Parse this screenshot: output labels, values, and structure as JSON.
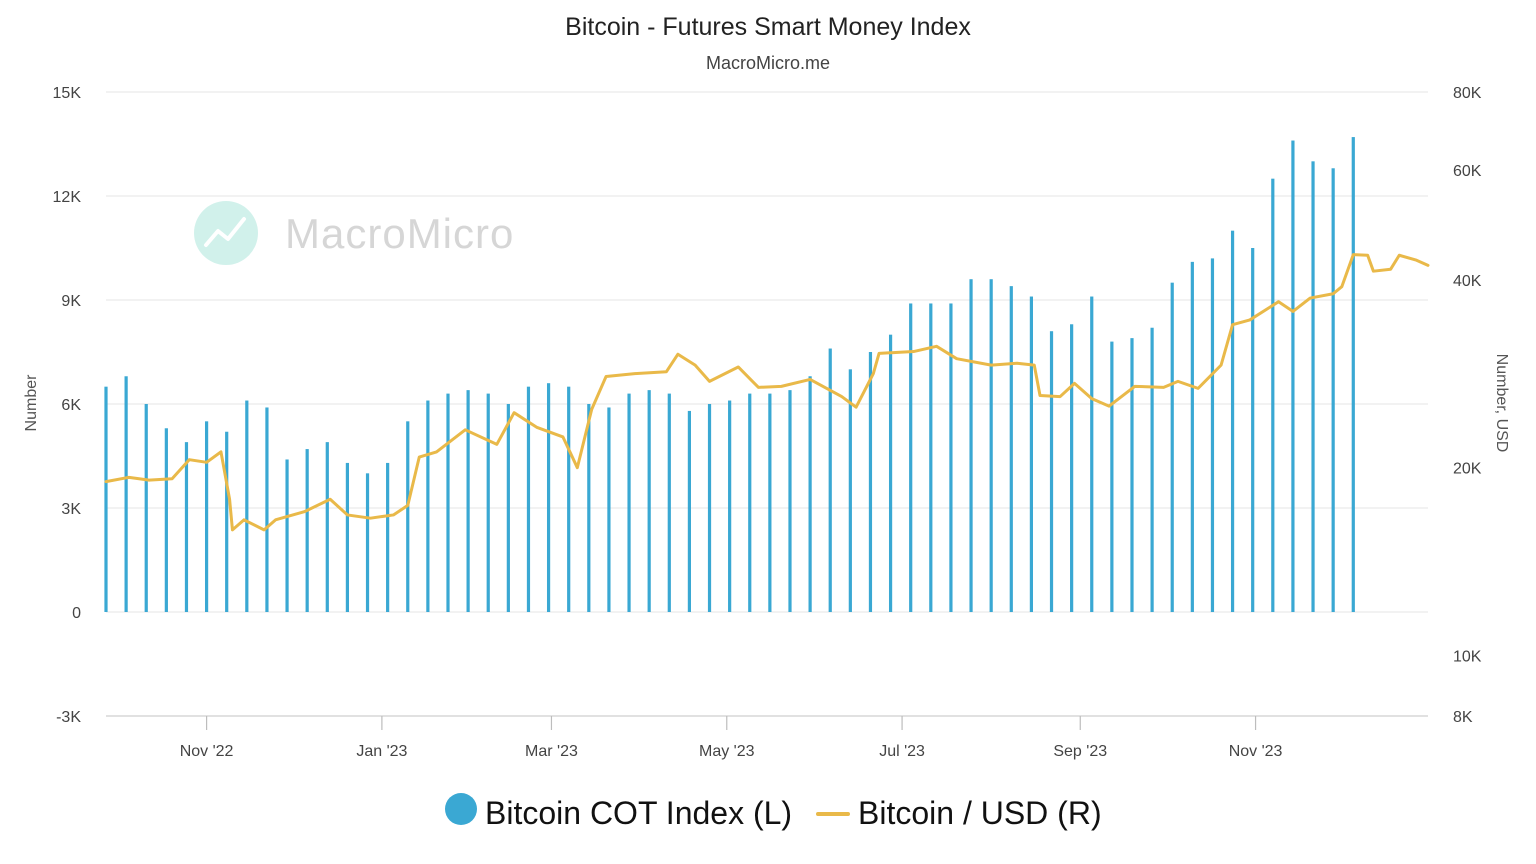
{
  "chart_data": {
    "type": "bar",
    "title": "Bitcoin - Futures Smart Money Index",
    "subtitle": "MacroMicro.me",
    "watermark": "MacroMicro",
    "left_axis": {
      "label": "Number",
      "range": [
        -3000,
        15000
      ],
      "ticks": [
        -3000,
        0,
        3000,
        6000,
        9000,
        12000,
        15000
      ],
      "tick_labels": [
        "-3K",
        "0",
        "3K",
        "6K",
        "9K",
        "12K",
        "15K"
      ]
    },
    "right_axis": {
      "label": "Number, USD",
      "scale": "log",
      "range": [
        8000,
        80000
      ],
      "ticks": [
        8000,
        10000,
        20000,
        40000,
        60000,
        80000
      ],
      "tick_labels": [
        "8K",
        "10K",
        "20K",
        "40K",
        "60K",
        "80K"
      ]
    },
    "x_axis": {
      "start": "2022-09-27",
      "end": "2023-12-31",
      "tick_dates": [
        "2022-11-01",
        "2023-01-01",
        "2023-03-01",
        "2023-05-01",
        "2023-07-01",
        "2023-09-01",
        "2023-11-01"
      ],
      "tick_labels": [
        "Nov '22",
        "Jan '23",
        "Mar '23",
        "May '23",
        "Jul '23",
        "Sep '23",
        "Nov '23"
      ]
    },
    "legend": {
      "position": "bottom-center",
      "entries": [
        {
          "name": "Bitcoin COT Index (L)",
          "symbol": "circle",
          "color": "#3aa8d3"
        },
        {
          "name": "Bitcoin / USD (R)",
          "symbol": "line",
          "color": "#e9b949"
        }
      ]
    },
    "series": [
      {
        "name": "Bitcoin COT Index (L)",
        "axis": "left",
        "type": "bar",
        "color": "#3aa8d3",
        "start_date": "2022-09-27",
        "interval_days": 7,
        "values": [
          6500,
          6800,
          6000,
          5300,
          4900,
          5500,
          5200,
          6100,
          5900,
          4400,
          4700,
          4900,
          4300,
          4000,
          4300,
          5500,
          6100,
          6300,
          6400,
          6300,
          6000,
          6500,
          6600,
          6500,
          6000,
          5900,
          6300,
          6400,
          6300,
          5800,
          6000,
          6100,
          6300,
          6300,
          6400,
          6800,
          7600,
          7000,
          7500,
          8000,
          8900,
          8900,
          8900,
          9600,
          9600,
          9400,
          9100,
          8100,
          8300,
          9100,
          7800,
          7900,
          8200,
          9500,
          10100,
          10200,
          11000,
          10500,
          12500,
          13600,
          13000,
          12800,
          13700
        ]
      },
      {
        "name": "Bitcoin / USD (R)",
        "axis": "right",
        "type": "line",
        "color": "#e9b949",
        "points": [
          [
            "2022-09-27",
            19000
          ],
          [
            "2022-10-05",
            19300
          ],
          [
            "2022-10-12",
            19100
          ],
          [
            "2022-10-20",
            19200
          ],
          [
            "2022-10-26",
            20600
          ],
          [
            "2022-11-01",
            20400
          ],
          [
            "2022-11-06",
            21200
          ],
          [
            "2022-11-09",
            17800
          ],
          [
            "2022-11-10",
            15900
          ],
          [
            "2022-11-14",
            16500
          ],
          [
            "2022-11-21",
            15900
          ],
          [
            "2022-11-25",
            16500
          ],
          [
            "2022-12-05",
            17000
          ],
          [
            "2022-12-14",
            17800
          ],
          [
            "2022-12-20",
            16800
          ],
          [
            "2022-12-28",
            16600
          ],
          [
            "2023-01-05",
            16800
          ],
          [
            "2023-01-10",
            17400
          ],
          [
            "2023-01-14",
            20800
          ],
          [
            "2023-01-20",
            21200
          ],
          [
            "2023-01-30",
            23000
          ],
          [
            "2023-02-10",
            21800
          ],
          [
            "2023-02-16",
            24500
          ],
          [
            "2023-02-24",
            23200
          ],
          [
            "2023-03-05",
            22400
          ],
          [
            "2023-03-10",
            20000
          ],
          [
            "2023-03-15",
            24800
          ],
          [
            "2023-03-20",
            28000
          ],
          [
            "2023-03-30",
            28300
          ],
          [
            "2023-04-10",
            28500
          ],
          [
            "2023-04-14",
            30400
          ],
          [
            "2023-04-20",
            29200
          ],
          [
            "2023-04-25",
            27500
          ],
          [
            "2023-05-05",
            29000
          ],
          [
            "2023-05-12",
            26900
          ],
          [
            "2023-05-20",
            27000
          ],
          [
            "2023-05-30",
            27700
          ],
          [
            "2023-06-10",
            26000
          ],
          [
            "2023-06-15",
            25000
          ],
          [
            "2023-06-21",
            28300
          ],
          [
            "2023-06-23",
            30500
          ],
          [
            "2023-07-05",
            30700
          ],
          [
            "2023-07-13",
            31300
          ],
          [
            "2023-07-20",
            29900
          ],
          [
            "2023-08-01",
            29200
          ],
          [
            "2023-08-10",
            29400
          ],
          [
            "2023-08-16",
            29200
          ],
          [
            "2023-08-18",
            26100
          ],
          [
            "2023-08-25",
            26000
          ],
          [
            "2023-08-30",
            27300
          ],
          [
            "2023-09-05",
            25800
          ],
          [
            "2023-09-11",
            25100
          ],
          [
            "2023-09-20",
            27000
          ],
          [
            "2023-09-30",
            26900
          ],
          [
            "2023-10-05",
            27500
          ],
          [
            "2023-10-12",
            26800
          ],
          [
            "2023-10-20",
            29200
          ],
          [
            "2023-10-24",
            33900
          ],
          [
            "2023-10-30",
            34500
          ],
          [
            "2023-11-09",
            36900
          ],
          [
            "2023-11-14",
            35600
          ],
          [
            "2023-11-20",
            37400
          ],
          [
            "2023-11-28",
            38000
          ],
          [
            "2023-12-01",
            39000
          ],
          [
            "2023-12-05",
            43900
          ],
          [
            "2023-12-10",
            43800
          ],
          [
            "2023-12-12",
            41300
          ],
          [
            "2023-12-18",
            41600
          ],
          [
            "2023-12-21",
            43800
          ],
          [
            "2023-12-27",
            43000
          ],
          [
            "2023-12-31",
            42200
          ]
        ]
      }
    ]
  }
}
